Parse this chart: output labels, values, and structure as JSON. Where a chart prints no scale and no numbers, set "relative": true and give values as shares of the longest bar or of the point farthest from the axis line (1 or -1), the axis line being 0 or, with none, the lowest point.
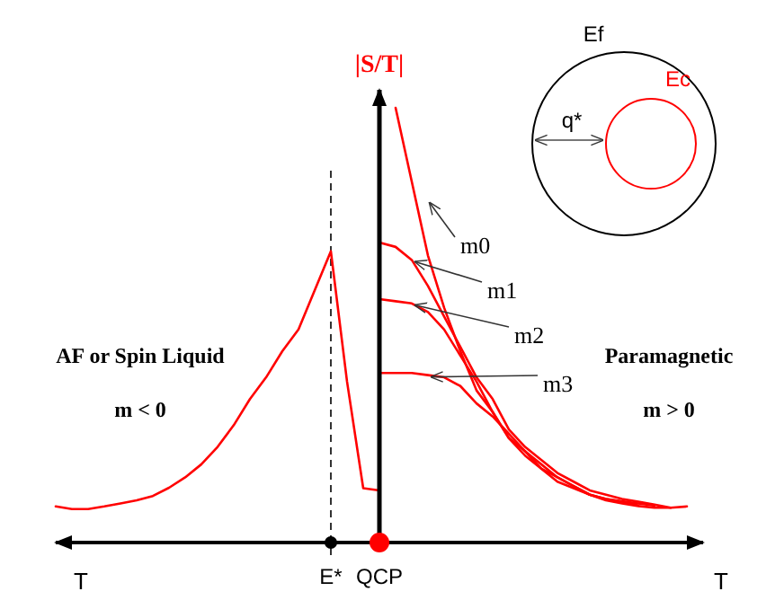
{
  "chart_data": {
    "type": "line",
    "relative": true,
    "ylabel": "|S/T|",
    "xlabel": "T",
    "categories": [
      null,
      null,
      null,
      null,
      null,
      null,
      null,
      null,
      null,
      null,
      null,
      null,
      null,
      null,
      null,
      null,
      null,
      "E*",
      null,
      null,
      "QCP",
      null,
      null,
      null,
      null,
      null,
      null,
      null,
      null,
      null,
      null,
      null,
      null,
      null,
      null,
      null,
      null,
      null,
      null,
      null,
      null
    ],
    "legend": false,
    "marker": "none",
    "line_style": "solid",
    "ref_lines": [
      {
        "axis": "x",
        "value": "E*",
        "color": "#000000",
        "line_style": "dashed"
      }
    ],
    "annotations": [
      "AF or Spin Liquid",
      "m < 0",
      "Paramagnetic",
      "m > 0",
      "Ef",
      "Ec",
      "q*"
    ],
    "series": [
      {
        "color": "#ff0000",
        "values": [
          0.083,
          0.077,
          0.077,
          0.083,
          0.09,
          0.097,
          0.107,
          0.126,
          0.15,
          0.18,
          0.22,
          0.27,
          0.33,
          0.38,
          0.44,
          0.49,
          0.58,
          0.67,
          0.37,
          0.125,
          0.12,
          null,
          null,
          null,
          null,
          null,
          null,
          null,
          null,
          null,
          null,
          null,
          null,
          null,
          null,
          null,
          null,
          null,
          null,
          null,
          null
        ]
      },
      {
        "name": "m0",
        "color": "#ff0000",
        "values": [
          null,
          null,
          null,
          null,
          null,
          null,
          null,
          null,
          null,
          null,
          null,
          null,
          null,
          null,
          null,
          null,
          null,
          null,
          null,
          null,
          null,
          1,
          0.83,
          0.66,
          0.54,
          0.44,
          0.35,
          0.3,
          0.24,
          0.21,
          0.18,
          0.15,
          0.13,
          0.11,
          0.097,
          0.09,
          0.084,
          0.08,
          0.08,
          0.083,
          null
        ]
      },
      {
        "name": "m1",
        "color": "#ff0000",
        "values": [
          null,
          null,
          null,
          null,
          null,
          null,
          null,
          null,
          null,
          null,
          null,
          null,
          null,
          null,
          null,
          null,
          null,
          null,
          null,
          null,
          0.69,
          0.68,
          0.65,
          0.59,
          0.52,
          0.45,
          0.38,
          0.33,
          0.26,
          0.22,
          0.19,
          0.16,
          0.14,
          0.12,
          0.11,
          0.1,
          0.094,
          0.087,
          0.08,
          null,
          null
        ]
      },
      {
        "name": "m2",
        "color": "#ff0000",
        "values": [
          null,
          null,
          null,
          null,
          null,
          null,
          null,
          null,
          null,
          null,
          null,
          null,
          null,
          null,
          null,
          null,
          null,
          null,
          null,
          null,
          0.56,
          0.555,
          0.55,
          0.53,
          0.49,
          0.43,
          0.37,
          0.3,
          0.24,
          0.2,
          0.17,
          0.15,
          0.13,
          0.11,
          0.1,
          0.095,
          0.09,
          0.085,
          null,
          null,
          null
        ]
      },
      {
        "name": "m3",
        "color": "#ff0000",
        "values": [
          null,
          null,
          null,
          null,
          null,
          null,
          null,
          null,
          null,
          null,
          null,
          null,
          null,
          null,
          null,
          null,
          null,
          null,
          null,
          null,
          0.39,
          0.39,
          0.39,
          0.385,
          0.38,
          0.36,
          0.32,
          0.29,
          0.25,
          0.21,
          0.17,
          0.14,
          0.125,
          0.11,
          0.1,
          0.094,
          0.085,
          null,
          null,
          null,
          null
        ]
      }
    ]
  }
}
